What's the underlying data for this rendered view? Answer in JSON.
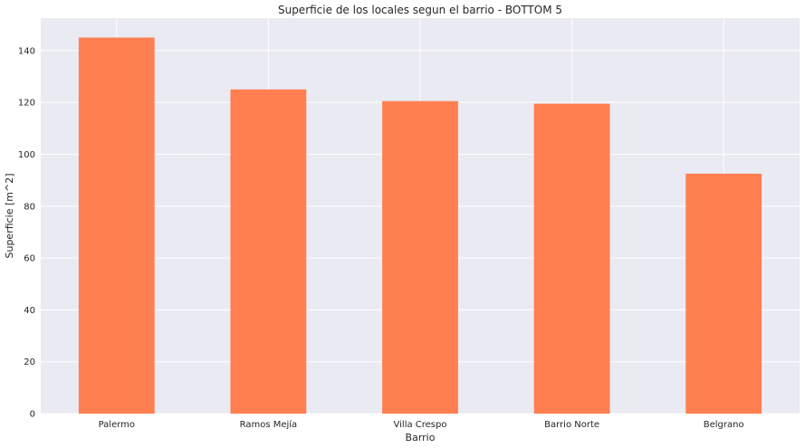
{
  "chart_data": {
    "type": "bar",
    "title": "Superficie de los locales segun el barrio - BOTTOM 5",
    "xlabel": "Barrio",
    "ylabel": "Superficie [m^2]",
    "categories": [
      "Palermo",
      "Ramos Mejía",
      "Villa Crespo",
      "Barrio Norte",
      "Belgrano"
    ],
    "values": [
      145,
      125,
      120.5,
      119.5,
      92.5
    ],
    "ylim": [
      0,
      152.5
    ],
    "yticks": [
      0,
      20,
      40,
      60,
      80,
      100,
      120,
      140
    ],
    "grid": true,
    "colors": {
      "bar": "#ff7f50",
      "plot_background": "#eaeaf2",
      "grid": "#ffffff"
    }
  }
}
